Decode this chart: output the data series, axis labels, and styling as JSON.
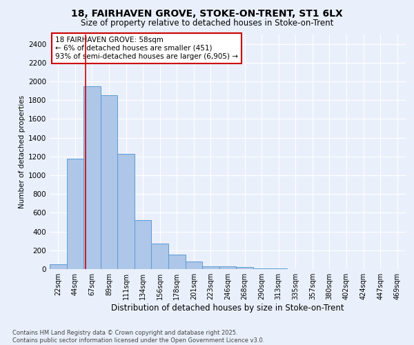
{
  "title_line1": "18, FAIRHAVEN GROVE, STOKE-ON-TRENT, ST1 6LX",
  "title_line2": "Size of property relative to detached houses in Stoke-on-Trent",
  "xlabel": "Distribution of detached houses by size in Stoke-on-Trent",
  "ylabel": "Number of detached properties",
  "annotation_title": "18 FAIRHAVEN GROVE: 58sqm",
  "annotation_line2": "← 6% of detached houses are smaller (451)",
  "annotation_line3": "93% of semi-detached houses are larger (6,905) →",
  "footer_line1": "Contains HM Land Registry data © Crown copyright and database right 2025.",
  "footer_line2": "Contains public sector information licensed under the Open Government Licence v3.0.",
  "bar_color": "#aec6e8",
  "bar_edge_color": "#5b9bd5",
  "background_color": "#eaf0fb",
  "grid_color": "#ffffff",
  "vline_x": 58,
  "vline_color": "#cc0000",
  "annotation_box_edge_color": "#cc0000",
  "categories": [
    "22sqm",
    "44sqm",
    "67sqm",
    "89sqm",
    "111sqm",
    "134sqm",
    "156sqm",
    "178sqm",
    "201sqm",
    "223sqm",
    "246sqm",
    "268sqm",
    "290sqm",
    "313sqm",
    "335sqm",
    "357sqm",
    "380sqm",
    "402sqm",
    "424sqm",
    "447sqm",
    "469sqm"
  ],
  "bin_edges": [
    11,
    33,
    55,
    77,
    99,
    121,
    143,
    165,
    187,
    209,
    231,
    253,
    275,
    297,
    319,
    341,
    363,
    385,
    407,
    429,
    451,
    473
  ],
  "values": [
    50,
    1175,
    1950,
    1850,
    1225,
    520,
    270,
    155,
    80,
    28,
    30,
    25,
    10,
    5,
    2,
    2,
    1,
    1,
    1,
    1,
    3
  ],
  "ylim": [
    0,
    2500
  ],
  "yticks": [
    0,
    200,
    400,
    600,
    800,
    1000,
    1200,
    1400,
    1600,
    1800,
    2000,
    2200,
    2400
  ]
}
